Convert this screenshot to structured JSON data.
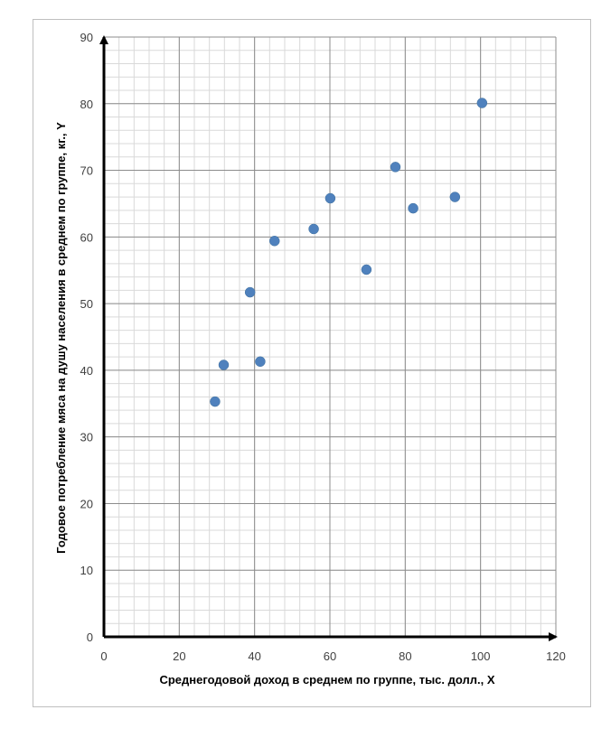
{
  "chart_data": {
    "type": "scatter",
    "title": "",
    "xlabel": "Среднегодовой доход в среднем по группе, тыс. долл., X",
    "ylabel": "Годовое потребление мяса на душу населения в среднем по группе, кг., Y",
    "xlim": [
      0,
      120
    ],
    "ylim": [
      0,
      90
    ],
    "x_major_step": 20,
    "y_major_step": 10,
    "x_minor_step": 4,
    "y_minor_step": 2,
    "grid": true,
    "legend": "none",
    "marker_color": "#4f81bd",
    "points": [
      {
        "x": 29.5,
        "y": 35.3
      },
      {
        "x": 31.8,
        "y": 40.8
      },
      {
        "x": 38.8,
        "y": 51.7
      },
      {
        "x": 41.5,
        "y": 41.3
      },
      {
        "x": 45.3,
        "y": 59.4
      },
      {
        "x": 55.7,
        "y": 61.2
      },
      {
        "x": 60.1,
        "y": 65.8
      },
      {
        "x": 69.7,
        "y": 55.1
      },
      {
        "x": 77.4,
        "y": 70.5
      },
      {
        "x": 82.1,
        "y": 64.3
      },
      {
        "x": 93.2,
        "y": 66.0
      },
      {
        "x": 100.4,
        "y": 80.1
      }
    ]
  }
}
